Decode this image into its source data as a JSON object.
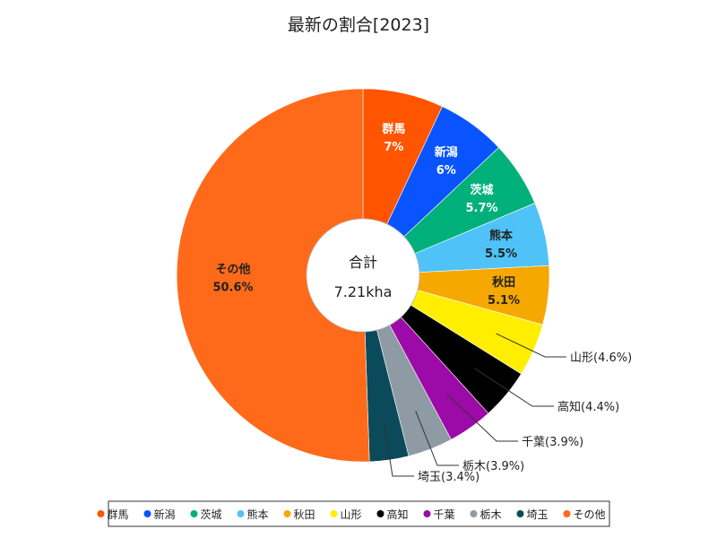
{
  "chart_data": {
    "type": "pie",
    "title": "最新の割合[2023]",
    "center_label": "合計",
    "center_value": "7.21kha",
    "slices": [
      {
        "name": "群馬",
        "value": 7.0,
        "value_label": "7%",
        "color": "#ff5400",
        "label_color": "#ffffff",
        "label_mode": "inside"
      },
      {
        "name": "新潟",
        "value": 6.0,
        "value_label": "6%",
        "color": "#0a54ff",
        "label_color": "#ffffff",
        "label_mode": "inside"
      },
      {
        "name": "茨城",
        "value": 5.7,
        "value_label": "5.7%",
        "color": "#00b07a",
        "label_color": "#ffffff",
        "label_mode": "inside"
      },
      {
        "name": "熊本",
        "value": 5.5,
        "value_label": "5.5%",
        "color": "#4fc3f7",
        "label_color": "#222222",
        "label_mode": "inside"
      },
      {
        "name": "秋田",
        "value": 5.1,
        "value_label": "5.1%",
        "color": "#f5a800",
        "label_color": "#222222",
        "label_mode": "inside"
      },
      {
        "name": "山形",
        "value": 4.6,
        "value_label": "(4.6%)",
        "color": "#ffee00",
        "label_color": "#222222",
        "label_mode": "outside"
      },
      {
        "name": "高知",
        "value": 4.4,
        "value_label": "(4.4%)",
        "color": "#000000",
        "label_color": "#222222",
        "label_mode": "outside"
      },
      {
        "name": "千葉",
        "value": 3.9,
        "value_label": "(3.9%)",
        "color": "#9c0aa8",
        "label_color": "#222222",
        "label_mode": "outside"
      },
      {
        "name": "栃木",
        "value": 3.9,
        "value_label": "(3.9%)",
        "color": "#8e9ba4",
        "label_color": "#222222",
        "label_mode": "outside"
      },
      {
        "name": "埼玉",
        "value": 3.4,
        "value_label": "(3.4%)",
        "color": "#0a4a5a",
        "label_color": "#222222",
        "label_mode": "outside"
      },
      {
        "name": "その他",
        "value": 50.6,
        "value_label": "50.6%",
        "color": "#ff6a1a",
        "label_color": "#222222",
        "label_mode": "inside"
      }
    ],
    "legend": {
      "placement": "bottom"
    }
  }
}
